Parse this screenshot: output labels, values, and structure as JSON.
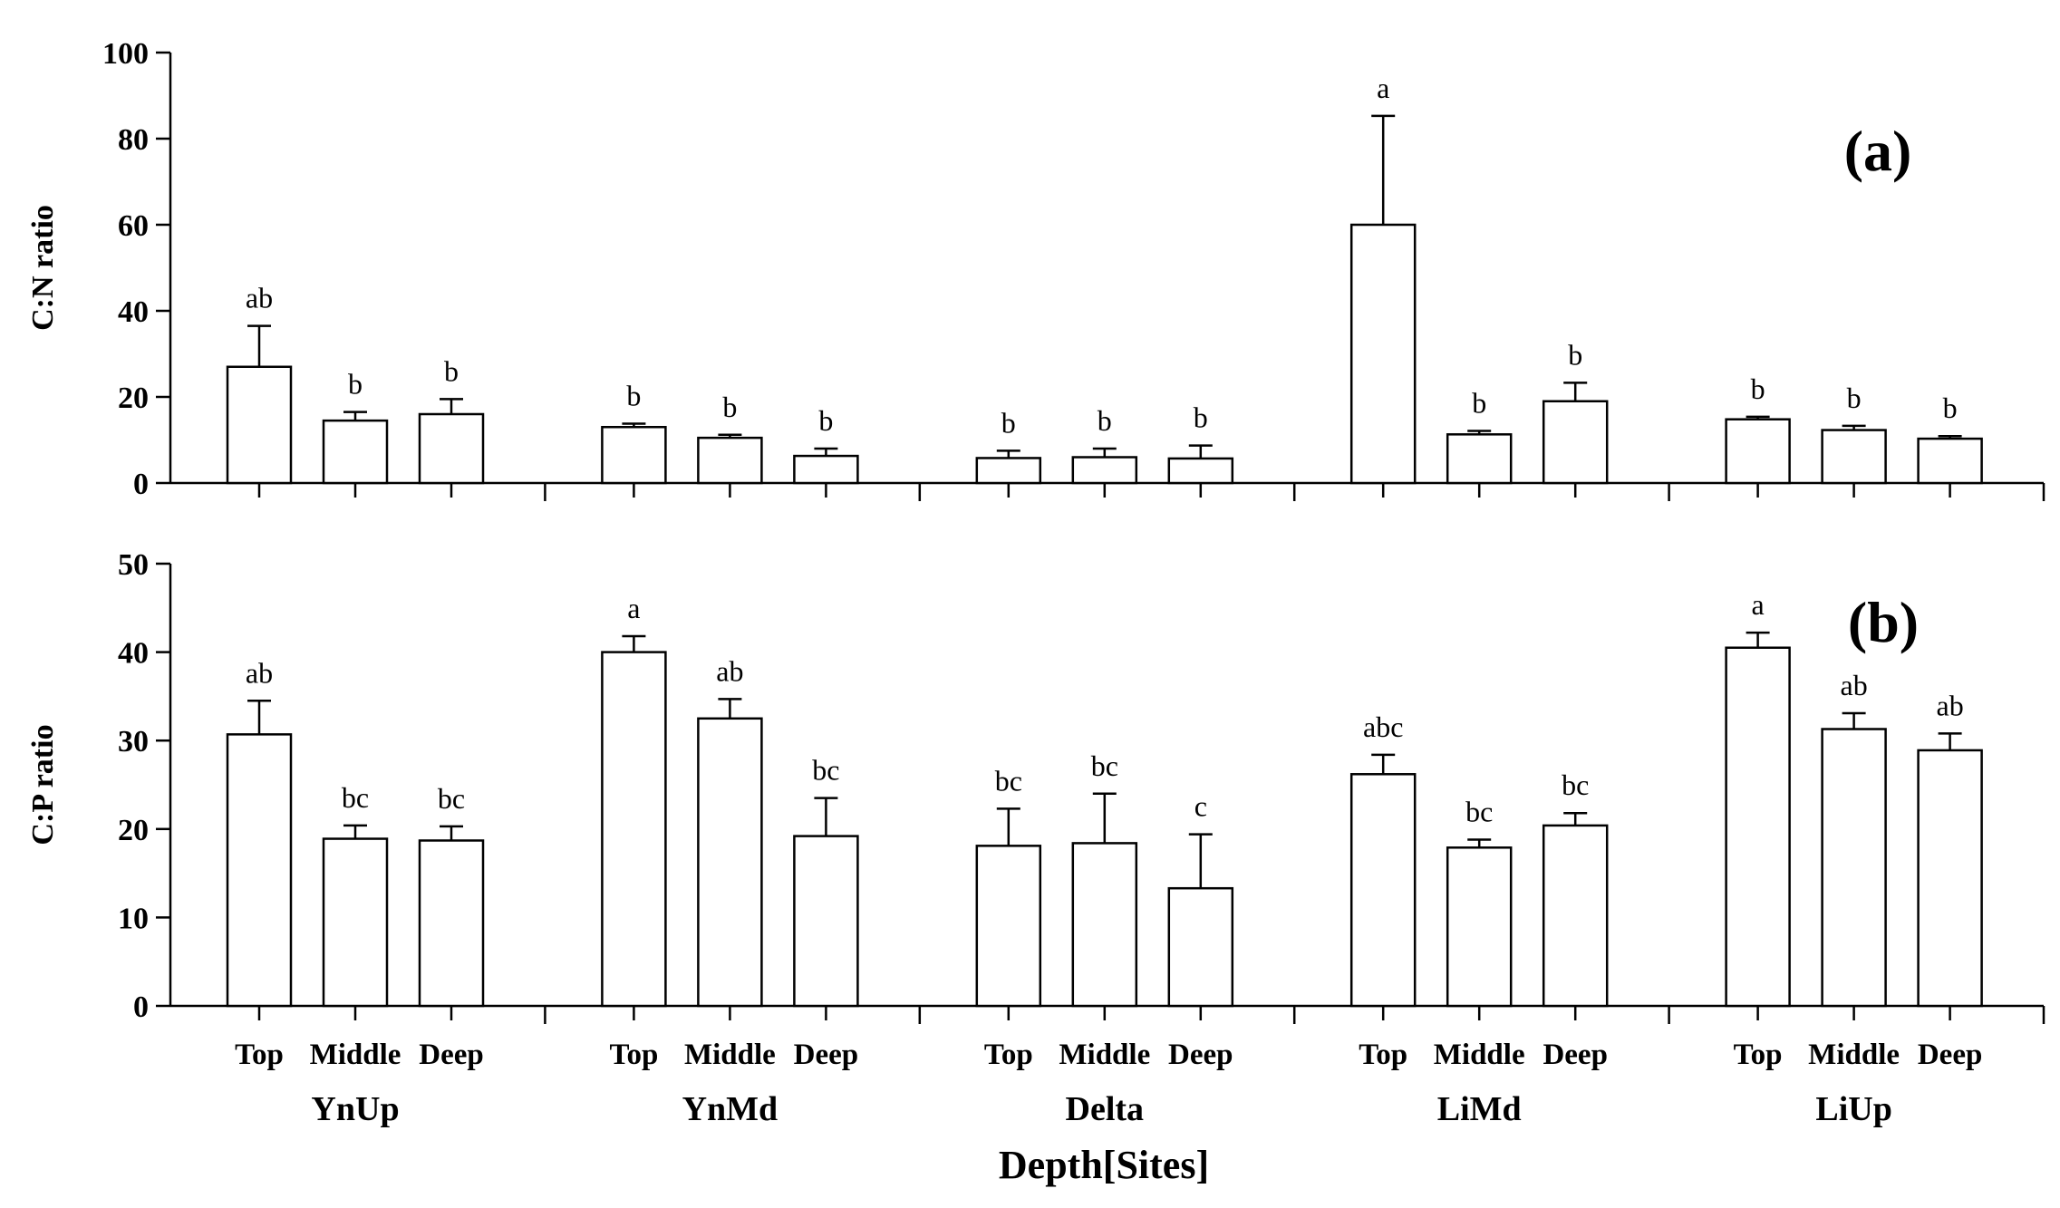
{
  "chart_data": [
    {
      "type": "bar",
      "panel_label": "(a)",
      "ylabel": "C:N ratio",
      "ylim": [
        0,
        100
      ],
      "yticks": [
        0,
        20,
        40,
        60,
        80,
        100
      ],
      "yticklabels": [
        "0",
        "20",
        "40",
        "60",
        "80",
        "100"
      ],
      "groups": [
        "YnUp",
        "YnMd",
        "Delta",
        "LiMd",
        "LiUp"
      ],
      "categories": [
        "Top",
        "Middle",
        "Deep"
      ],
      "values": [
        [
          27,
          14.5,
          16
        ],
        [
          13,
          10.5,
          6.3
        ],
        [
          5.8,
          6,
          5.7
        ],
        [
          60,
          11.3,
          19
        ],
        [
          14.8,
          12.3,
          10.3
        ]
      ],
      "errors": [
        [
          9.5,
          2,
          3.5
        ],
        [
          0.8,
          0.7,
          1.7
        ],
        [
          1.7,
          2,
          3
        ],
        [
          25.3,
          0.8,
          4.3
        ],
        [
          0.6,
          1,
          0.6
        ]
      ],
      "significance": [
        [
          "ab",
          "b",
          "b"
        ],
        [
          "b",
          "b",
          "b"
        ],
        [
          "b",
          "b",
          "b"
        ],
        [
          "a",
          "b",
          "b"
        ],
        [
          "b",
          "b",
          "b"
        ]
      ]
    },
    {
      "type": "bar",
      "panel_label": "(b)",
      "ylabel": "C:P ratio",
      "ylim": [
        0,
        50
      ],
      "yticks": [
        0,
        10,
        20,
        30,
        40,
        50
      ],
      "yticklabels": [
        "0",
        "10",
        "20",
        "30",
        "40",
        "50"
      ],
      "groups": [
        "YnUp",
        "YnMd",
        "Delta",
        "LiMd",
        "LiUp"
      ],
      "categories": [
        "Top",
        "Middle",
        "Deep"
      ],
      "values": [
        [
          30.7,
          18.9,
          18.7
        ],
        [
          40,
          32.5,
          19.2
        ],
        [
          18.1,
          18.4,
          13.3
        ],
        [
          26.2,
          17.9,
          20.4
        ],
        [
          40.5,
          31.3,
          28.9
        ]
      ],
      "errors": [
        [
          3.8,
          1.5,
          1.6
        ],
        [
          1.8,
          2.2,
          4.3
        ],
        [
          4.2,
          5.6,
          6.1
        ],
        [
          2.2,
          0.9,
          1.4
        ],
        [
          1.7,
          1.8,
          1.9
        ]
      ],
      "significance": [
        [
          "ab",
          "bc",
          "bc"
        ],
        [
          "a",
          "ab",
          "bc"
        ],
        [
          "bc",
          "bc",
          "c"
        ],
        [
          "abc",
          "bc",
          "bc"
        ],
        [
          "a",
          "ab",
          "ab"
        ]
      ],
      "xlabel": "Depth[Sites]"
    }
  ]
}
